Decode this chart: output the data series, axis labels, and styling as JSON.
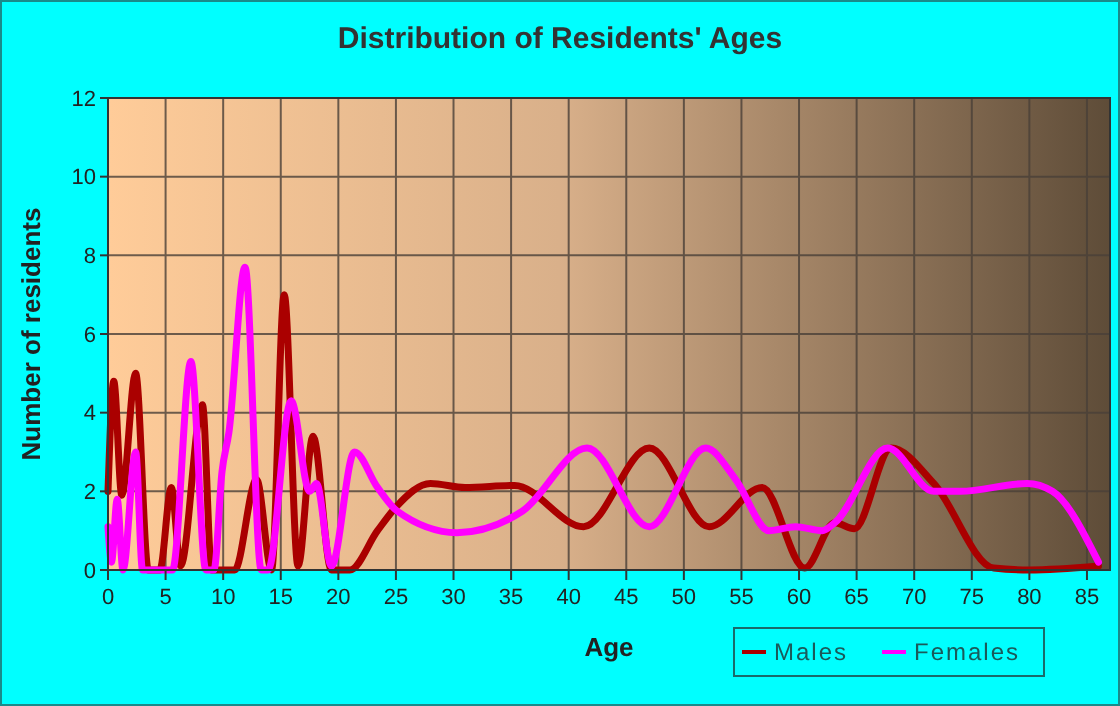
{
  "chart_data": {
    "type": "line",
    "title": "Distribution of Residents' Ages",
    "xlabel": "Age",
    "ylabel": "Number of residents",
    "xlim": [
      0,
      87
    ],
    "xticks": [
      0,
      5,
      10,
      15,
      20,
      25,
      30,
      35,
      40,
      45,
      50,
      55,
      60,
      65,
      70,
      75,
      80,
      85
    ],
    "ylim": [
      0,
      12
    ],
    "yticks": [
      0,
      2,
      4,
      6,
      8,
      10,
      12
    ],
    "grid": true,
    "legend": "bottom right",
    "line_style": "solid",
    "marker": "none",
    "series": [
      {
        "name": "Males",
        "color": "#aa0000",
        "x": [
          0,
          0.5,
          1.2,
          2.4,
          3.5,
          4.5,
          5.5,
          6.3,
          8.2,
          9,
          11,
          12.9,
          14.2,
          15.3,
          16.5,
          17.8,
          19.4,
          21,
          23.4,
          25,
          28,
          31,
          35.3,
          41.3,
          47,
          52.2,
          56.8,
          60.5,
          63.1,
          64.8,
          68,
          71.7,
          76.9,
          80,
          86
        ],
        "values": [
          2,
          4.8,
          1.9,
          5,
          0,
          0,
          2.1,
          0.1,
          4.2,
          0,
          0,
          2.3,
          0,
          7,
          0.1,
          3.4,
          0,
          0,
          1,
          1.6,
          2.2,
          2.1,
          2.15,
          1.1,
          3.1,
          1.1,
          2.1,
          0.05,
          1.2,
          1.05,
          3.1,
          2.2,
          0.05,
          0,
          0.1
        ]
      },
      {
        "name": "Females",
        "color": "#ff00ff",
        "x": [
          0,
          0.3,
          0.8,
          1.3,
          2.4,
          3,
          5.6,
          7.2,
          8.5,
          9.2,
          9.9,
          10.5,
          11.9,
          13.3,
          13.9,
          15.9,
          17.5,
          18.1,
          19.4,
          21.4,
          23.4,
          25.1,
          30.3,
          36,
          41.6,
          47,
          51.9,
          54.5,
          57.4,
          59.7,
          62,
          63.1,
          67.7,
          71.7,
          74,
          79.8,
          82,
          86
        ],
        "values": [
          1.1,
          0.2,
          1.8,
          0,
          3,
          0,
          0,
          5.3,
          0,
          0,
          2.5,
          3.5,
          7.7,
          0,
          0,
          4.3,
          2,
          2.2,
          0.1,
          3,
          2.1,
          1.5,
          0.95,
          1.5,
          3.1,
          1.1,
          3.1,
          2.3,
          1,
          1.1,
          1,
          1.2,
          3.1,
          2,
          2,
          2.2,
          2,
          0.2
        ]
      }
    ]
  }
}
